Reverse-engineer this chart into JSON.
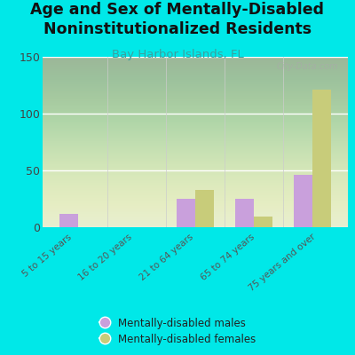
{
  "title": "Age and Sex of Mentally-Disabled\nNoninstitutionalized Residents",
  "subtitle": "Bay Harbor Islands, FL",
  "categories": [
    "5 to 15 years",
    "16 to 20 years",
    "21 to 64 years",
    "65 to 74 years",
    "75 years and over"
  ],
  "males": [
    12,
    0,
    25,
    25,
    46
  ],
  "females": [
    0,
    0,
    33,
    9,
    121
  ],
  "male_color": "#c9a0dc",
  "female_color": "#c8cc7a",
  "background_outer": "#00e8e8",
  "background_inner": "#e8edd8",
  "ylim": [
    0,
    150
  ],
  "yticks": [
    0,
    50,
    100,
    150
  ],
  "title_fontsize": 12.5,
  "subtitle_fontsize": 9.5,
  "subtitle_color": "#3aa0a0",
  "tick_label_color": "#444444",
  "watermark": "City-Data.com",
  "legend_labels": [
    "Mentally-disabled males",
    "Mentally-disabled females"
  ],
  "legend_text_color": "#222222"
}
